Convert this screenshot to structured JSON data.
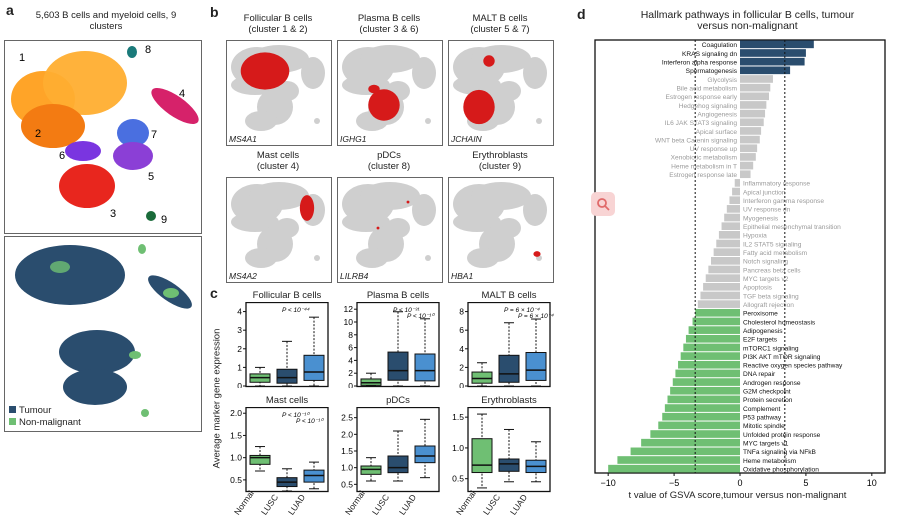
{
  "panel_a": {
    "label": "a",
    "title": "5,603 B cells and myeloid cells, 9 clusters",
    "clusters": [
      "1",
      "2",
      "3",
      "4",
      "5",
      "6",
      "7",
      "8",
      "9"
    ],
    "legend": [
      {
        "label": "Tumour",
        "color": "#2a4d6e"
      },
      {
        "label": "Non-malignant",
        "color": "#6fbf73"
      }
    ],
    "cluster_colors": [
      "#ff9f1c",
      "#f37b12",
      "#e8261e",
      "#d6226a",
      "#8b3fd6",
      "#7a35e0",
      "#4a6fe0",
      "#1a7a7a",
      "#1a6b3a"
    ]
  },
  "panel_b": {
    "label": "b",
    "plots": [
      {
        "title": "Follicular B cells",
        "subtitle": "(cluster 1 & 2)",
        "gene": "MS4A1"
      },
      {
        "title": "Plasma B cells",
        "subtitle": "(cluster 3 & 6)",
        "gene": "IGHG1"
      },
      {
        "title": "MALT B cells",
        "subtitle": "(cluster 5 & 7)",
        "gene": "JCHAIN"
      },
      {
        "title": "Mast cells",
        "subtitle": "(cluster 4)",
        "gene": "MS4A2"
      },
      {
        "title": "pDCs",
        "subtitle": "(cluster 8)",
        "gene": "LILRB4"
      },
      {
        "title": "Erythroblasts",
        "subtitle": "(cluster 9)",
        "gene": "HBA1"
      }
    ]
  },
  "panel_c": {
    "label": "c",
    "ylabel": "Average marker gene expression",
    "groups": [
      "Normal",
      "LUSC",
      "LUAD"
    ],
    "group_colors": [
      "#6fbf73",
      "#2a4d6e",
      "#4a90d0"
    ],
    "plots": [
      {
        "title": "Follicular B cells",
        "yticks": [
          "0",
          "1",
          "2",
          "3",
          "4"
        ],
        "ymax": 4.3,
        "annots": [
          "P < 10⁻⁴⁴"
        ],
        "boxes": [
          {
            "q1": 0.2,
            "med": 0.45,
            "q3": 0.65,
            "lo": 0.0,
            "hi": 1.0
          },
          {
            "q1": 0.15,
            "med": 0.45,
            "q3": 0.9,
            "lo": 0.0,
            "hi": 2.4
          },
          {
            "q1": 0.3,
            "med": 0.75,
            "q3": 1.65,
            "lo": 0.0,
            "hi": 3.7
          }
        ]
      },
      {
        "title": "Plasma B cells",
        "yticks": [
          "0",
          "2",
          "4",
          "6",
          "8",
          "10",
          "12"
        ],
        "ymax": 12.5,
        "annots": [
          "P < 10⁻³¹",
          "P < 10⁻¹⁰"
        ],
        "boxes": [
          {
            "q1": 0.1,
            "med": 0.5,
            "q3": 1.1,
            "lo": 0.0,
            "hi": 2.0
          },
          {
            "q1": 0.9,
            "med": 2.4,
            "q3": 5.3,
            "lo": 0.0,
            "hi": 11.6
          },
          {
            "q1": 0.8,
            "med": 2.4,
            "q3": 5.0,
            "lo": 0.0,
            "hi": 10.5
          }
        ]
      },
      {
        "title": "MALT B cells",
        "yticks": [
          "0",
          "2",
          "4",
          "6",
          "8"
        ],
        "ymax": 8.6,
        "annots": [
          "P = 6 × 10⁻⁴",
          "P = 6 × 10⁻⁴"
        ],
        "boxes": [
          {
            "q1": 0.3,
            "med": 0.8,
            "q3": 1.5,
            "lo": 0.0,
            "hi": 2.5
          },
          {
            "q1": 0.4,
            "med": 1.3,
            "q3": 3.3,
            "lo": 0.0,
            "hi": 6.8
          },
          {
            "q1": 0.6,
            "med": 1.7,
            "q3": 3.6,
            "lo": 0.0,
            "hi": 7.2
          }
        ]
      },
      {
        "title": "Mast cells",
        "yticks": [
          "0.5",
          "1.0",
          "1.5",
          "2.0"
        ],
        "ymin": 0.25,
        "ymax": 2.05,
        "annots": [
          "P < 10⁻¹⁰",
          "P < 10⁻¹⁰"
        ],
        "boxes": [
          {
            "q1": 0.85,
            "med": 1.0,
            "q3": 1.05,
            "lo": 0.7,
            "hi": 1.25
          },
          {
            "q1": 0.35,
            "med": 0.45,
            "q3": 0.55,
            "lo": 0.25,
            "hi": 0.75
          },
          {
            "q1": 0.45,
            "med": 0.6,
            "q3": 0.72,
            "lo": 0.3,
            "hi": 0.9
          }
        ]
      },
      {
        "title": "pDCs",
        "yticks": [
          "0.5",
          "1.0",
          "1.5",
          "2.0",
          "2.5"
        ],
        "ymin": 0.3,
        "ymax": 2.7,
        "annots": [],
        "boxes": [
          {
            "q1": 0.8,
            "med": 0.95,
            "q3": 1.05,
            "lo": 0.6,
            "hi": 1.3
          },
          {
            "q1": 0.85,
            "med": 1.0,
            "q3": 1.35,
            "lo": 0.6,
            "hi": 2.1
          },
          {
            "q1": 1.15,
            "med": 1.35,
            "q3": 1.65,
            "lo": 0.7,
            "hi": 2.45
          }
        ]
      },
      {
        "title": "Erythroblasts",
        "yticks": [
          "0.5",
          "1.0",
          "1.5"
        ],
        "ymin": 0.3,
        "ymax": 1.6,
        "annots": [],
        "boxes": [
          {
            "q1": 0.6,
            "med": 0.72,
            "q3": 1.15,
            "lo": 0.35,
            "hi": 1.55
          },
          {
            "q1": 0.62,
            "med": 0.74,
            "q3": 0.82,
            "lo": 0.45,
            "hi": 1.3
          },
          {
            "q1": 0.6,
            "med": 0.7,
            "q3": 0.8,
            "lo": 0.45,
            "hi": 1.1
          }
        ]
      }
    ]
  },
  "panel_d": {
    "label": "d",
    "title": "Hallmark pathways in follicular B cells, tumour versus non-malignant",
    "xlabel": "t value of GSVA score,tumour versus non-malignant",
    "xticks": [
      "−10",
      "−5",
      "0",
      "5",
      "10"
    ]
  },
  "chart_data": {
    "type": "bar",
    "title": "Hallmark pathways in follicular B cells, tumour versus non-malignant",
    "xlabel": "t value of GSVA score,tumour versus non-malignant",
    "xlim": [
      -11,
      11
    ],
    "categories": [
      "Coagulation",
      "KRAS signaling dn",
      "Interferon alpha response",
      "Spermatogenesis",
      "Glycolysis",
      "Bile acid metabolism",
      "Estrogen response early",
      "Hedgehog signaling",
      "Angiogenesis",
      "IL6 JAK STAT3 signaling",
      "Apical surface",
      "WNT beta Catenin signaling",
      "UV response up",
      "Xenobiotic metabolism",
      "Heme metabolism in T",
      "Estrogen response late",
      "Inflammatory response",
      "Apical junction",
      "Interferon gamma response",
      "UV response dn",
      "Myogenesis",
      "Epithelial mesenchymal transition",
      "Hypoxia",
      "IL2 STAT5 signaling",
      "Fatty acid metabolism",
      "Notch signaling",
      "Pancreas beta cells",
      "MYC targets v2",
      "Apoptosis",
      "TGF beta signaling",
      "Allograft rejection",
      "Peroxisome",
      "Cholesterol homeostasis",
      "Adipogenesis",
      "E2F targets",
      "mTORC1 signaling",
      "PI3K AKT mTOR signaling",
      "Reactive oxygen species pathway",
      "DNA repair",
      "Androgen response",
      "G2M checkpoint",
      "Protein secretion",
      "Complement",
      "P53 pathway",
      "Mitotic spindle",
      "Unfolded protein response",
      "MYC targets v1",
      "TNFa signaling via NFkB",
      "Heme metabolism",
      "Oxidative phosphorylation"
    ],
    "values": [
      5.6,
      5.0,
      4.9,
      3.8,
      2.5,
      2.3,
      2.2,
      2.0,
      1.9,
      1.8,
      1.6,
      1.5,
      1.3,
      1.2,
      1.0,
      0.8,
      -0.4,
      -0.6,
      -0.8,
      -1.0,
      -1.2,
      -1.4,
      -1.6,
      -1.8,
      -2.0,
      -2.2,
      -2.4,
      -2.6,
      -2.8,
      -3.0,
      -3.2,
      -3.4,
      -3.6,
      -3.9,
      -4.1,
      -4.3,
      -4.5,
      -4.7,
      -4.9,
      -5.1,
      -5.3,
      -5.5,
      -5.7,
      -5.9,
      -6.2,
      -6.8,
      -7.5,
      -8.3,
      -9.3,
      -10.0
    ],
    "highlight_colors": {
      "up_sig": "#2a4d6e",
      "nonsig": "#c8c8c8",
      "down_sig": "#6fbf73"
    },
    "thresholds": [
      -3.4,
      3.4
    ]
  }
}
